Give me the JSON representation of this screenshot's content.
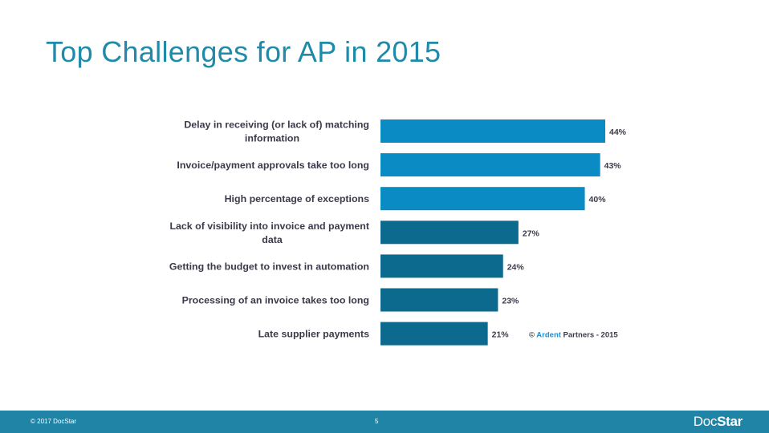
{
  "slide": {
    "title": "Top Challenges for AP in 2015"
  },
  "chart_data": {
    "type": "bar",
    "orientation": "horizontal",
    "categories": [
      "Delay in receiving (or lack of) matching information",
      "Invoice/payment approvals take too long",
      "High percentage of exceptions",
      "Lack of visibility into invoice and payment data",
      "Getting the budget to invest in automation",
      "Processing of an invoice takes too long",
      "Late supplier payments"
    ],
    "category_lines": [
      [
        "Delay in receiving (or lack of) matching",
        "information"
      ],
      [
        "Invoice/payment approvals take too long"
      ],
      [
        "High percentage of exceptions"
      ],
      [
        "Lack of visibility into invoice and payment",
        "data"
      ],
      [
        "Getting the budget to invest in automation"
      ],
      [
        "Processing of an invoice takes too long"
      ],
      [
        "Late supplier payments"
      ]
    ],
    "values": [
      44,
      43,
      40,
      27,
      24,
      23,
      21
    ],
    "value_labels": [
      "44%",
      "43%",
      "40%",
      "27%",
      "24%",
      "23%",
      "21%"
    ],
    "bar_colors": [
      "#0a8bc4",
      "#0a8bc4",
      "#0a8bc4",
      "#0b6a8d",
      "#0b6a8d",
      "#0b6a8d",
      "#0b6a8d"
    ],
    "label_color": "#3a3a4a",
    "title": "",
    "xlabel": "",
    "ylabel": "",
    "xlim": [
      0,
      44
    ],
    "grid": false,
    "legend": "none",
    "annotation": {
      "copyright": "© ",
      "brand": "Ardent",
      "rest": " Partners - 2015",
      "brand_color": "#1a8fd0",
      "rest_color": "#3a3a4a"
    }
  },
  "footer": {
    "copyright": "© 2017 DocStar",
    "page_number": "5",
    "logo_light": "Doc",
    "logo_strong": "Star",
    "background": "#1f84a6"
  }
}
